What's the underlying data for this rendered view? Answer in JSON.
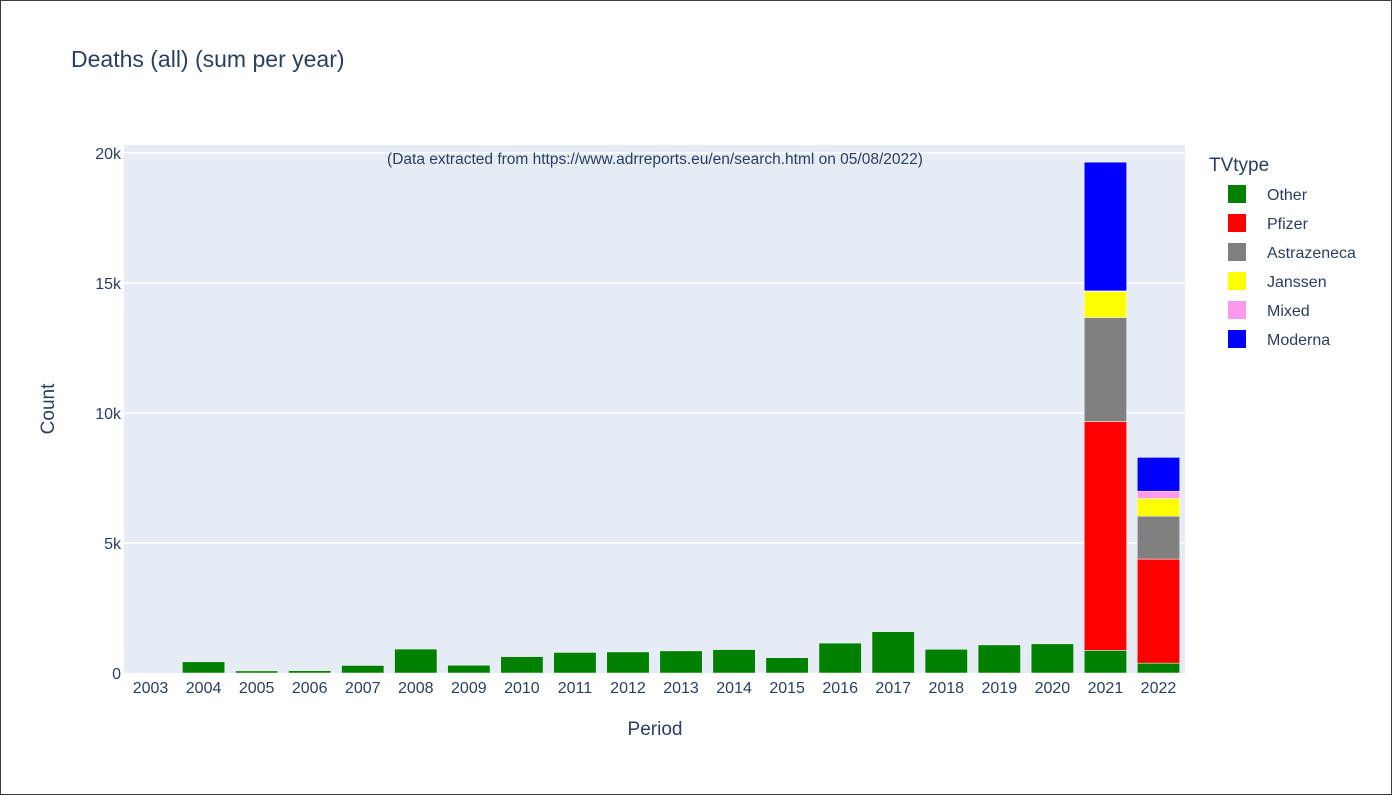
{
  "chart_data": {
    "type": "bar",
    "stacked": true,
    "title": "Deaths (all) (sum per year)",
    "annotation": "(Data extracted from https://www.adrreports.eu/en/search.html on 05/08/2022)",
    "xlabel": "Period",
    "ylabel": "Count",
    "ylim": [
      0,
      20300
    ],
    "yticks": [
      0,
      5000,
      10000,
      15000,
      20000
    ],
    "ytick_labels": [
      "0",
      "5k",
      "10k",
      "15k",
      "20k"
    ],
    "grid": true,
    "legend_title": "TVtype",
    "legend_position": "right",
    "categories": [
      "2003",
      "2004",
      "2005",
      "2006",
      "2007",
      "2008",
      "2009",
      "2010",
      "2011",
      "2012",
      "2013",
      "2014",
      "2015",
      "2016",
      "2017",
      "2018",
      "2019",
      "2020",
      "2021",
      "2022"
    ],
    "series": [
      {
        "name": "Other",
        "color": "#008000",
        "values": [
          0,
          430,
          80,
          90,
          290,
          920,
          300,
          630,
          790,
          810,
          850,
          900,
          590,
          1150,
          1590,
          910,
          1080,
          1120,
          870,
          380
        ]
      },
      {
        "name": "Pfizer",
        "color": "#ff0000",
        "values": [
          0,
          0,
          0,
          0,
          0,
          0,
          0,
          0,
          0,
          0,
          0,
          0,
          0,
          0,
          0,
          0,
          0,
          0,
          8800,
          4000
        ]
      },
      {
        "name": "Astrazeneca",
        "color": "#808080",
        "values": [
          0,
          0,
          0,
          0,
          0,
          0,
          0,
          0,
          0,
          0,
          0,
          0,
          0,
          0,
          0,
          0,
          0,
          0,
          4000,
          1650
        ]
      },
      {
        "name": "Janssen",
        "color": "#ffff00",
        "values": [
          0,
          0,
          0,
          0,
          0,
          0,
          0,
          0,
          0,
          0,
          0,
          0,
          0,
          0,
          0,
          0,
          0,
          0,
          1000,
          680
        ]
      },
      {
        "name": "Mixed",
        "color": "#ff99ee",
        "values": [
          0,
          0,
          0,
          0,
          0,
          0,
          0,
          0,
          0,
          0,
          0,
          0,
          0,
          0,
          0,
          0,
          0,
          0,
          20,
          280
        ]
      },
      {
        "name": "Moderna",
        "color": "#0000ff",
        "values": [
          0,
          0,
          0,
          0,
          0,
          0,
          0,
          0,
          0,
          0,
          0,
          0,
          0,
          0,
          0,
          0,
          0,
          0,
          4950,
          1300
        ]
      }
    ]
  }
}
